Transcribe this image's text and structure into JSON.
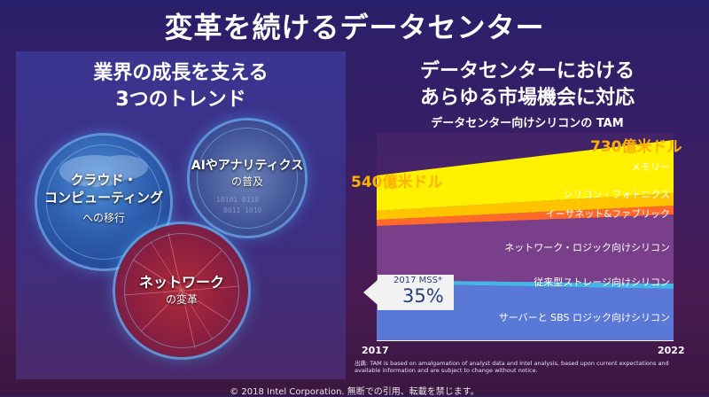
{
  "slide": {
    "title": "変革を続けるデータセンター",
    "copyright": "© 2018 Intel Corporation. 無断での引用、転載を禁じます。"
  },
  "left": {
    "heading_line1": "業界の成長を支える",
    "heading_line2": "3つのトレンド",
    "trends": [
      {
        "title_line1": "クラウド・",
        "title_line2": "コンピューティング",
        "subtitle": "への移行",
        "icon": "cloud-icon"
      },
      {
        "title_line1": "AIやアナリティクス",
        "subtitle": "の普及",
        "icon": "ai-circuit-icon"
      },
      {
        "title_line1": "ネットワーク",
        "subtitle": "の変革",
        "icon": "network-icon"
      }
    ]
  },
  "right": {
    "heading_line1": "データセンターにおける",
    "heading_line2": "あらゆる市場機会に対応",
    "footnote": "出典: TAM is based on amalgamation of analyst data and Intel analysis, based upon current expectations and available information and are subject to change without notice."
  },
  "chart_data": {
    "type": "area",
    "title": "データセンター向けシリコンの TAM",
    "x": [
      "2017",
      "2022"
    ],
    "start_total_label": "540億米ドル",
    "end_total_label": "730億米ドル",
    "start_total": 540,
    "end_total": 730,
    "unit": "億米ドル",
    "series": [
      {
        "name": "サーバーと SBS ロジック向けシリコン",
        "color": "#5a78d6"
      },
      {
        "name": "従来型ストレージ向けシリコン",
        "color": "#46b4e6"
      },
      {
        "name": "ネットワーク・ロジック向けシリコン",
        "color": "#7a3f8a"
      },
      {
        "name": "イーサネット&ファブリック",
        "color": "#ff6a2a"
      },
      {
        "name": "シリコン・フォトニクス",
        "color": "#ffc400"
      },
      {
        "name": "メモリー",
        "color": "#fff100"
      }
    ],
    "callout": {
      "label": "2017 MSS*",
      "value": "35%"
    }
  }
}
